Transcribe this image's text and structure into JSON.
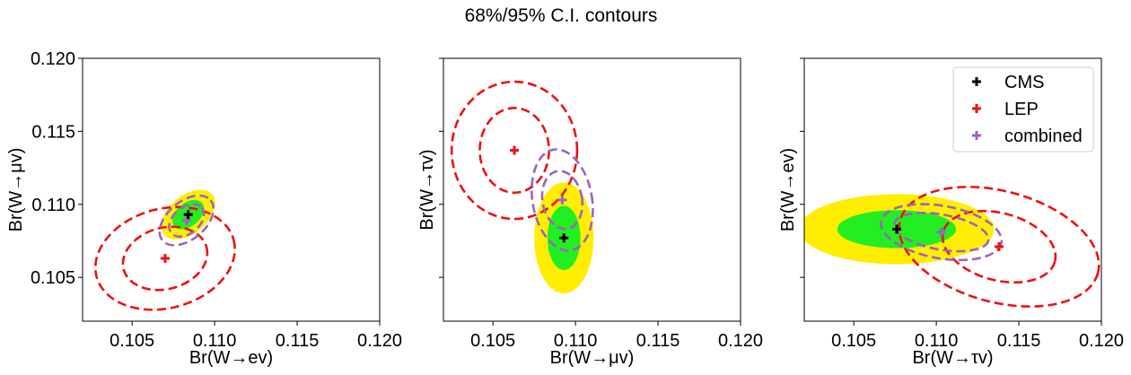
{
  "figure": {
    "title": "68%/95% C.I. contours"
  },
  "colors": {
    "cms_68": "#22ee22",
    "cms_95": "#ffee00",
    "lep": "#ee1111",
    "combined": "#9966bb",
    "cms_marker": "#000000"
  },
  "legend": {
    "placement": "top-right of third panel",
    "entries": [
      {
        "label": "CMS",
        "color": "#000000"
      },
      {
        "label": "LEP",
        "color": "#ee1111"
      },
      {
        "label": "combined",
        "color": "#9966bb"
      }
    ]
  },
  "chart_data": [
    {
      "type": "scatter",
      "xlabel": "Br(W→ev)",
      "ylabel": "Br(W→μv)",
      "xlim": [
        0.102,
        0.12
      ],
      "ylim": [
        0.102,
        0.12
      ],
      "xticks": [
        "0.105",
        "0.110",
        "0.115",
        "0.120"
      ],
      "yticks": [
        "0.105",
        "0.110",
        "0.115",
        "0.120"
      ],
      "show_ytick_labels": true,
      "series": [
        {
          "name": "CMS",
          "center": [
            0.1084,
            0.1093
          ],
          "ellipse_68": {
            "rx": 0.0011,
            "ry": 0.0008,
            "angle_deg": 40
          },
          "ellipse_95": {
            "rx": 0.0019,
            "ry": 0.0013,
            "angle_deg": 40
          }
        },
        {
          "name": "LEP",
          "center": [
            0.107,
            0.1063
          ],
          "ellipse_68": {
            "rx": 0.0026,
            "ry": 0.0021,
            "angle_deg": 15
          },
          "ellipse_95": {
            "rx": 0.0043,
            "ry": 0.0034,
            "angle_deg": 15
          }
        },
        {
          "name": "combined",
          "center": [
            0.1083,
            0.1089
          ],
          "ellipse_68": {
            "rx": 0.0012,
            "ry": 0.0009,
            "angle_deg": 40
          },
          "ellipse_95": {
            "rx": 0.0019,
            "ry": 0.0013,
            "angle_deg": 40
          }
        }
      ]
    },
    {
      "type": "scatter",
      "xlabel": "Br(W→μv)",
      "ylabel": "Br(W→τv)",
      "xlim": [
        0.102,
        0.12
      ],
      "ylim": [
        0.102,
        0.12
      ],
      "xticks": [
        "0.105",
        "0.110",
        "0.115",
        "0.120"
      ],
      "yticks": [
        "0.105",
        "0.110",
        "0.115",
        "0.120"
      ],
      "show_ytick_labels": false,
      "series": [
        {
          "name": "CMS",
          "center": [
            0.1093,
            0.1077
          ],
          "ellipse_68": {
            "rx": 0.001,
            "ry": 0.0022,
            "angle_deg": 0
          },
          "ellipse_95": {
            "rx": 0.0018,
            "ry": 0.0038,
            "angle_deg": 0
          }
        },
        {
          "name": "LEP",
          "center": [
            0.1063,
            0.1137
          ],
          "ellipse_68": {
            "rx": 0.0021,
            "ry": 0.0029,
            "angle_deg": 0
          },
          "ellipse_95": {
            "rx": 0.0038,
            "ry": 0.0047,
            "angle_deg": 0
          }
        },
        {
          "name": "combined",
          "center": [
            0.1092,
            0.1103
          ],
          "ellipse_68": {
            "rx": 0.0012,
            "ry": 0.002,
            "angle_deg": 10
          },
          "ellipse_95": {
            "rx": 0.0018,
            "ry": 0.0035,
            "angle_deg": 10
          }
        }
      ]
    },
    {
      "type": "scatter",
      "xlabel": "Br(W→τv)",
      "ylabel": "Br(W→ev)",
      "xlim": [
        0.102,
        0.12
      ],
      "ylim": [
        0.102,
        0.12
      ],
      "xticks": [
        "0.105",
        "0.110",
        "0.115",
        "0.120"
      ],
      "yticks": [
        "0.105",
        "0.110",
        "0.115",
        "0.120"
      ],
      "show_ytick_labels": false,
      "series": [
        {
          "name": "CMS",
          "center": [
            0.1076,
            0.1083
          ],
          "ellipse_68": {
            "rx": 0.0036,
            "ry": 0.0013,
            "angle_deg": 0
          },
          "ellipse_95": {
            "rx": 0.0059,
            "ry": 0.0024,
            "angle_deg": 0
          }
        },
        {
          "name": "LEP",
          "center": [
            0.1138,
            0.1071
          ],
          "ellipse_68": {
            "rx": 0.0035,
            "ry": 0.0023,
            "angle_deg": -15
          },
          "ellipse_95": {
            "rx": 0.0062,
            "ry": 0.0038,
            "angle_deg": -15
          }
        },
        {
          "name": "combined",
          "center": [
            0.1103,
            0.1081
          ],
          "ellipse_68": {
            "rx": 0.0029,
            "ry": 0.0012,
            "angle_deg": -10
          },
          "ellipse_95": {
            "rx": 0.0037,
            "ry": 0.0018,
            "angle_deg": -10
          }
        }
      ]
    }
  ]
}
